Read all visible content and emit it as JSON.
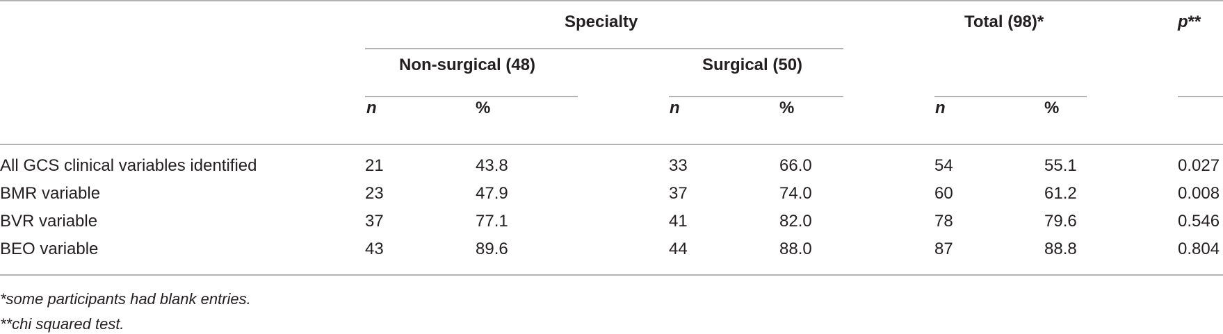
{
  "table": {
    "header": {
      "specialty": "Specialty",
      "total": "Total (98)*",
      "p_label": "p",
      "p_suffix": "**",
      "non_surgical": "Non-surgical (48)",
      "surgical": "Surgical (50)",
      "n": "n",
      "pct": "%"
    },
    "rows": [
      {
        "label": "All GCS clinical variables identified",
        "ns_n": "21",
        "ns_pct": "43.8",
        "s_n": "33",
        "s_pct": "66.0",
        "t_n": "54",
        "t_pct": "55.1",
        "p": "0.027"
      },
      {
        "label": "BMR variable",
        "ns_n": "23",
        "ns_pct": "47.9",
        "s_n": "37",
        "s_pct": "74.0",
        "t_n": "60",
        "t_pct": "61.2",
        "p": "0.008"
      },
      {
        "label": "BVR variable",
        "ns_n": "37",
        "ns_pct": "77.1",
        "s_n": "41",
        "s_pct": "82.0",
        "t_n": "78",
        "t_pct": "79.6",
        "p": "0.546"
      },
      {
        "label": "BEO variable",
        "ns_n": "43",
        "ns_pct": "89.6",
        "s_n": "44",
        "s_pct": "88.0",
        "t_n": "87",
        "t_pct": "88.8",
        "p": "0.804"
      }
    ],
    "footnotes": [
      "*some participants had blank entries.",
      "**chi squared test."
    ]
  }
}
